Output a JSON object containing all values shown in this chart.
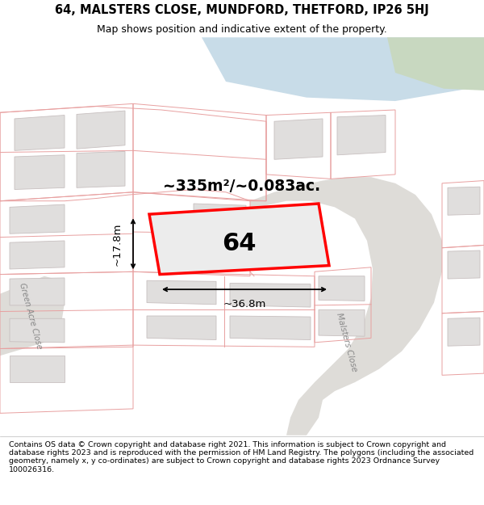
{
  "title_line1": "64, MALSTERS CLOSE, MUNDFORD, THETFORD, IP26 5HJ",
  "title_line2": "Map shows position and indicative extent of the property.",
  "footer_text": "Contains OS data © Crown copyright and database right 2021. This information is subject to Crown copyright and database rights 2023 and is reproduced with the permission of HM Land Registry. The polygons (including the associated geometry, namely x, y co-ordinates) are subject to Crown copyright and database rights 2023 Ordnance Survey 100026316.",
  "area_label": "~335m²/~0.083ac.",
  "number_label": "64",
  "width_label": "~36.8m",
  "height_label": "~17.8m",
  "map_bg": "#f7f6f4",
  "parcel_outline": "#e8a0a0",
  "building_fill": "#e0dedd",
  "building_outline": "#c8c0c0",
  "highlight_color": "#ff0000",
  "road_fill": "#dedcd8",
  "road_label_color": "#888888",
  "blue_strip": "#c8dce8",
  "green_area": "#c8d8c0",
  "street_label_1": "Malsters Close",
  "street_label_2": "Green Acre Close",
  "figsize": [
    6.0,
    6.25
  ],
  "dpi": 100
}
